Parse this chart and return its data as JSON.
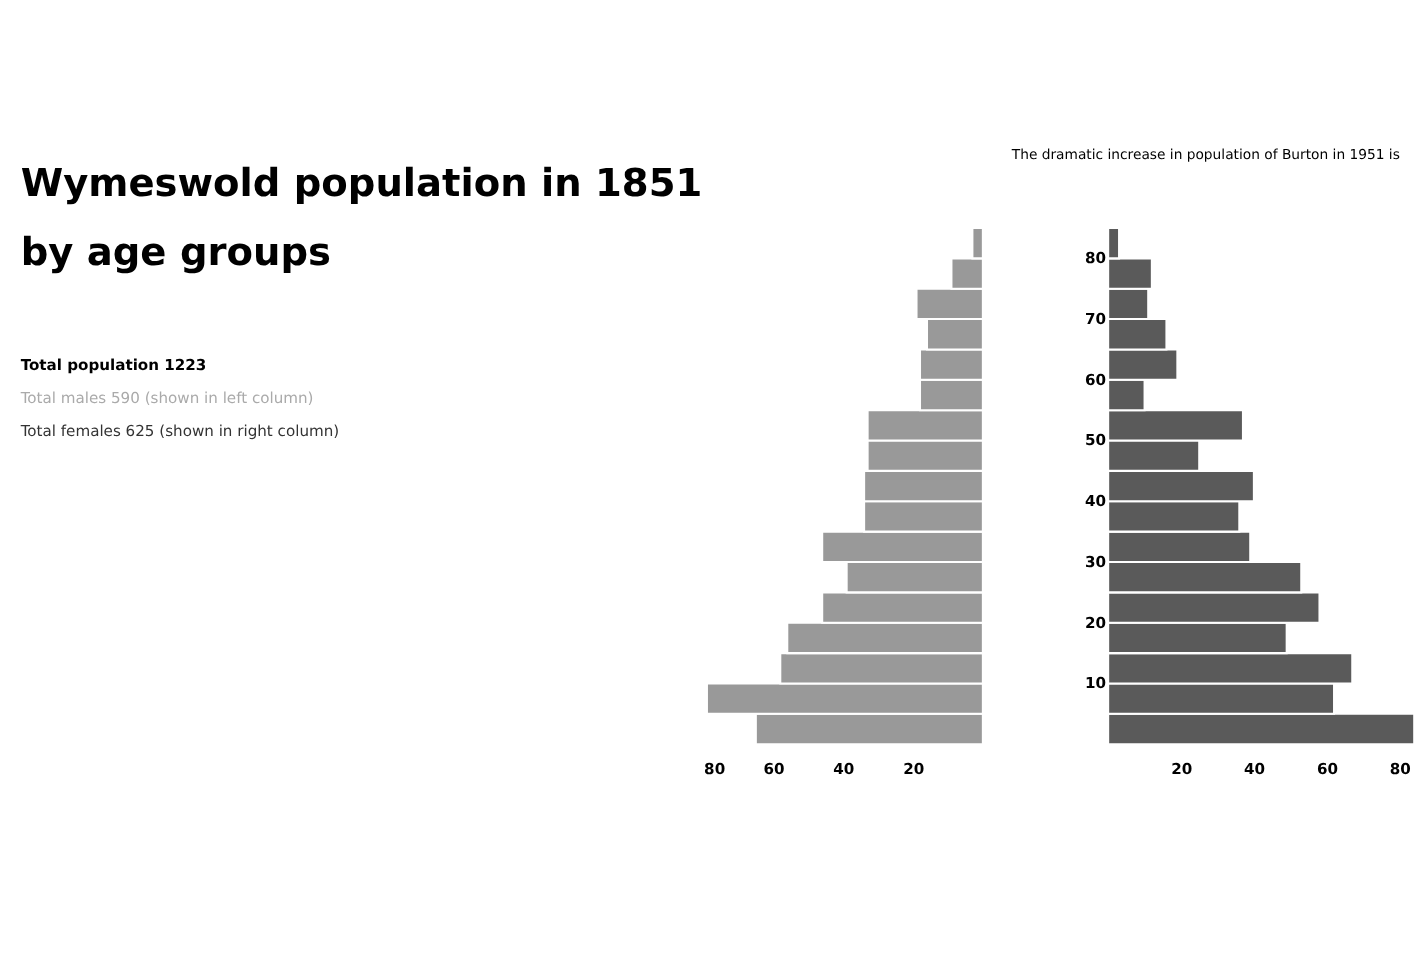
{
  "chart_data": [
    {
      "type": "bar",
      "orientation": "horizontal",
      "title": "Wymeswold population in 1851 by age groups",
      "annotations": [
        "The dramatic increase in population of Burton in 1951 is",
        "Total population 1223",
        "Total males 590 (shown in left column)",
        "Total females 625 (shown in right column)"
      ],
      "x": [
        2.5,
        7.5,
        12.5,
        17.5,
        22.5,
        27.5,
        32.5,
        37.5,
        42.5,
        47.5,
        52.5,
        57.5,
        62.5,
        67.5,
        72.5,
        77.5,
        82.5
      ],
      "ylim": [
        0,
        85
      ],
      "xlim": [
        80,
        0
      ],
      "xticks": [
        80,
        60,
        40,
        20
      ],
      "tick_labels": "x",
      "grid": false,
      "series": [
        {
          "color": "#999999",
          "values": [
            65,
            79,
            58,
            56,
            46,
            39,
            46,
            34,
            34,
            33,
            33,
            18,
            18,
            16,
            19,
            9,
            3
          ]
        }
      ]
    },
    {
      "type": "bar",
      "orientation": "horizontal",
      "x": [
        2.5,
        7.5,
        12.5,
        17.5,
        22.5,
        27.5,
        32.5,
        37.5,
        42.5,
        47.5,
        52.5,
        57.5,
        62.5,
        67.5,
        72.5,
        77.5,
        82.5
      ],
      "ylim": [
        0,
        85
      ],
      "yticks": [
        10,
        20,
        30,
        40,
        50,
        60,
        70,
        80
      ],
      "xlim": [
        0,
        85
      ],
      "xticks": [
        20,
        40,
        60,
        80
      ],
      "grid": false,
      "series": [
        {
          "color": "#5a5a5a",
          "values": [
            84,
            62,
            67,
            49,
            58,
            53,
            39,
            36,
            40,
            25,
            37,
            10,
            19,
            16,
            11,
            12,
            3
          ]
        }
      ]
    }
  ]
}
